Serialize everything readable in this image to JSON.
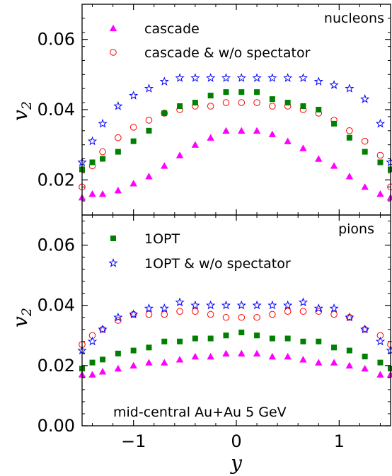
{
  "chart_data": [
    {
      "type": "scatter",
      "panel": "top",
      "title": "",
      "annotation": "nucleons",
      "xlabel": "",
      "ylabel": "v2",
      "xlim": [
        -1.5,
        1.5
      ],
      "ylim": [
        0.01,
        0.07
      ],
      "xticks": [
        -1,
        0,
        1
      ],
      "xtick_labels_shown": false,
      "yticks": [
        0.02,
        0.04,
        0.06
      ],
      "ytick_labels": [
        "0.02",
        "0.04",
        "0.06"
      ],
      "grid": false,
      "legend": {
        "placement": "top-left",
        "entries": [
          "cascade",
          "cascade & w/o spectator"
        ]
      },
      "series": [
        {
          "name": "cascade",
          "color": "#ff00ff",
          "marker": "filled-triangle",
          "points": [
            [
              -1.5,
              0.015
            ],
            [
              -1.4,
              0.016
            ],
            [
              -1.3,
              0.016
            ],
            [
              -1.15,
              0.017
            ],
            [
              -1.0,
              0.019
            ],
            [
              -0.85,
              0.021
            ],
            [
              -0.7,
              0.024
            ],
            [
              -0.55,
              0.027
            ],
            [
              -0.4,
              0.03
            ],
            [
              -0.25,
              0.032
            ],
            [
              -0.1,
              0.034
            ],
            [
              0.05,
              0.034
            ],
            [
              0.2,
              0.034
            ],
            [
              0.35,
              0.033
            ],
            [
              0.5,
              0.031
            ],
            [
              0.65,
              0.029
            ],
            [
              0.8,
              0.026
            ],
            [
              0.95,
              0.024
            ],
            [
              1.1,
              0.021
            ],
            [
              1.25,
              0.018
            ],
            [
              1.4,
              0.016
            ],
            [
              1.5,
              0.015
            ]
          ]
        },
        {
          "name": "cascade & w/o spectator",
          "color": "#ff0000",
          "marker": "open-circle",
          "points": [
            [
              -1.5,
              0.018
            ],
            [
              -1.4,
              0.024
            ],
            [
              -1.3,
              0.028
            ],
            [
              -1.15,
              0.032
            ],
            [
              -1.0,
              0.035
            ],
            [
              -0.85,
              0.037
            ],
            [
              -0.7,
              0.039
            ],
            [
              -0.55,
              0.04
            ],
            [
              -0.4,
              0.041
            ],
            [
              -0.25,
              0.041
            ],
            [
              -0.1,
              0.042
            ],
            [
              0.05,
              0.042
            ],
            [
              0.2,
              0.042
            ],
            [
              0.35,
              0.041
            ],
            [
              0.5,
              0.041
            ],
            [
              0.65,
              0.04
            ],
            [
              0.8,
              0.039
            ],
            [
              0.95,
              0.037
            ],
            [
              1.1,
              0.034
            ],
            [
              1.25,
              0.031
            ],
            [
              1.4,
              0.027
            ],
            [
              1.5,
              0.018
            ]
          ]
        },
        {
          "name": "1OPT",
          "color": "#008000",
          "marker": "filled-square",
          "points": [
            [
              -1.5,
              0.023
            ],
            [
              -1.4,
              0.025
            ],
            [
              -1.3,
              0.026
            ],
            [
              -1.15,
              0.028
            ],
            [
              -1.0,
              0.031
            ],
            [
              -0.85,
              0.034
            ],
            [
              -0.7,
              0.039
            ],
            [
              -0.55,
              0.041
            ],
            [
              -0.4,
              0.042
            ],
            [
              -0.25,
              0.044
            ],
            [
              -0.1,
              0.045
            ],
            [
              0.05,
              0.045
            ],
            [
              0.2,
              0.045
            ],
            [
              0.35,
              0.043
            ],
            [
              0.5,
              0.042
            ],
            [
              0.65,
              0.041
            ],
            [
              0.8,
              0.04
            ],
            [
              0.95,
              0.036
            ],
            [
              1.1,
              0.032
            ],
            [
              1.25,
              0.028
            ],
            [
              1.4,
              0.025
            ],
            [
              1.5,
              0.023
            ]
          ]
        },
        {
          "name": "1OPT & w/o spectator",
          "color": "#0000ff",
          "marker": "open-star",
          "points": [
            [
              -1.5,
              0.025
            ],
            [
              -1.4,
              0.031
            ],
            [
              -1.3,
              0.036
            ],
            [
              -1.15,
              0.041
            ],
            [
              -1.0,
              0.044
            ],
            [
              -0.85,
              0.046
            ],
            [
              -0.7,
              0.048
            ],
            [
              -0.55,
              0.049
            ],
            [
              -0.4,
              0.049
            ],
            [
              -0.25,
              0.049
            ],
            [
              -0.1,
              0.049
            ],
            [
              0.05,
              0.049
            ],
            [
              0.2,
              0.049
            ],
            [
              0.35,
              0.049
            ],
            [
              0.5,
              0.049
            ],
            [
              0.65,
              0.049
            ],
            [
              0.8,
              0.048
            ],
            [
              0.95,
              0.047
            ],
            [
              1.1,
              0.046
            ],
            [
              1.25,
              0.043
            ],
            [
              1.4,
              0.036
            ],
            [
              1.5,
              0.025
            ]
          ]
        }
      ]
    },
    {
      "type": "scatter",
      "panel": "bottom",
      "title": "",
      "annotation": "pions",
      "annotation2": "mid-central Au+Au 5 GeV",
      "xlabel": "y",
      "ylabel": "v2",
      "xlim": [
        -1.5,
        1.5
      ],
      "ylim": [
        0.0,
        0.07
      ],
      "xticks": [
        -1,
        0,
        1
      ],
      "xtick_labels": [
        "−1",
        "0",
        "1"
      ],
      "yticks": [
        0.0,
        0.02,
        0.04,
        0.06
      ],
      "ytick_labels": [
        "0.00",
        "0.02",
        "0.04",
        "0.06"
      ],
      "grid": false,
      "legend": {
        "placement": "top-left",
        "entries": [
          "1OPT",
          "1OPT & w/o spectator"
        ]
      },
      "series": [
        {
          "name": "cascade",
          "color": "#ff00ff",
          "marker": "filled-triangle",
          "points": [
            [
              -1.5,
              0.017
            ],
            [
              -1.4,
              0.017
            ],
            [
              -1.3,
              0.018
            ],
            [
              -1.15,
              0.019
            ],
            [
              -1.0,
              0.02
            ],
            [
              -0.85,
              0.021
            ],
            [
              -0.7,
              0.021
            ],
            [
              -0.55,
              0.022
            ],
            [
              -0.4,
              0.023
            ],
            [
              -0.25,
              0.023
            ],
            [
              -0.1,
              0.024
            ],
            [
              0.05,
              0.024
            ],
            [
              0.2,
              0.024
            ],
            [
              0.35,
              0.023
            ],
            [
              0.5,
              0.023
            ],
            [
              0.65,
              0.022
            ],
            [
              0.8,
              0.021
            ],
            [
              0.95,
              0.021
            ],
            [
              1.1,
              0.02
            ],
            [
              1.25,
              0.019
            ],
            [
              1.4,
              0.017
            ],
            [
              1.5,
              0.017
            ]
          ]
        },
        {
          "name": "cascade & w/o spectator",
          "color": "#ff0000",
          "marker": "open-circle",
          "points": [
            [
              -1.5,
              0.027
            ],
            [
              -1.4,
              0.03
            ],
            [
              -1.3,
              0.032
            ],
            [
              -1.15,
              0.035
            ],
            [
              -1.0,
              0.037
            ],
            [
              -0.85,
              0.037
            ],
            [
              -0.7,
              0.037
            ],
            [
              -0.55,
              0.038
            ],
            [
              -0.4,
              0.038
            ],
            [
              -0.25,
              0.037
            ],
            [
              -0.1,
              0.036
            ],
            [
              0.05,
              0.036
            ],
            [
              0.2,
              0.036
            ],
            [
              0.35,
              0.037
            ],
            [
              0.5,
              0.038
            ],
            [
              0.65,
              0.038
            ],
            [
              0.8,
              0.038
            ],
            [
              0.95,
              0.037
            ],
            [
              1.1,
              0.036
            ],
            [
              1.25,
              0.032
            ],
            [
              1.4,
              0.03
            ],
            [
              1.5,
              0.027
            ]
          ]
        },
        {
          "name": "1OPT",
          "color": "#008000",
          "marker": "filled-square",
          "points": [
            [
              -1.5,
              0.019
            ],
            [
              -1.4,
              0.021
            ],
            [
              -1.3,
              0.022
            ],
            [
              -1.15,
              0.024
            ],
            [
              -1.0,
              0.025
            ],
            [
              -0.85,
              0.026
            ],
            [
              -0.7,
              0.028
            ],
            [
              -0.55,
              0.028
            ],
            [
              -0.4,
              0.029
            ],
            [
              -0.25,
              0.029
            ],
            [
              -0.1,
              0.03
            ],
            [
              0.05,
              0.031
            ],
            [
              0.2,
              0.03
            ],
            [
              0.35,
              0.029
            ],
            [
              0.5,
              0.029
            ],
            [
              0.65,
              0.028
            ],
            [
              0.8,
              0.028
            ],
            [
              0.95,
              0.026
            ],
            [
              1.1,
              0.025
            ],
            [
              1.25,
              0.023
            ],
            [
              1.4,
              0.021
            ],
            [
              1.5,
              0.019
            ]
          ]
        },
        {
          "name": "1OPT & w/o spectator",
          "color": "#0000ff",
          "marker": "open-star",
          "points": [
            [
              -1.5,
              0.025
            ],
            [
              -1.4,
              0.028
            ],
            [
              -1.3,
              0.032
            ],
            [
              -1.15,
              0.036
            ],
            [
              -1.0,
              0.037
            ],
            [
              -0.85,
              0.039
            ],
            [
              -0.7,
              0.039
            ],
            [
              -0.55,
              0.041
            ],
            [
              -0.4,
              0.04
            ],
            [
              -0.25,
              0.04
            ],
            [
              -0.1,
              0.04
            ],
            [
              0.05,
              0.04
            ],
            [
              0.2,
              0.04
            ],
            [
              0.35,
              0.04
            ],
            [
              0.5,
              0.04
            ],
            [
              0.65,
              0.041
            ],
            [
              0.8,
              0.039
            ],
            [
              0.95,
              0.039
            ],
            [
              1.1,
              0.036
            ],
            [
              1.25,
              0.032
            ],
            [
              1.4,
              0.028
            ],
            [
              1.5,
              0.025
            ]
          ]
        }
      ]
    }
  ]
}
